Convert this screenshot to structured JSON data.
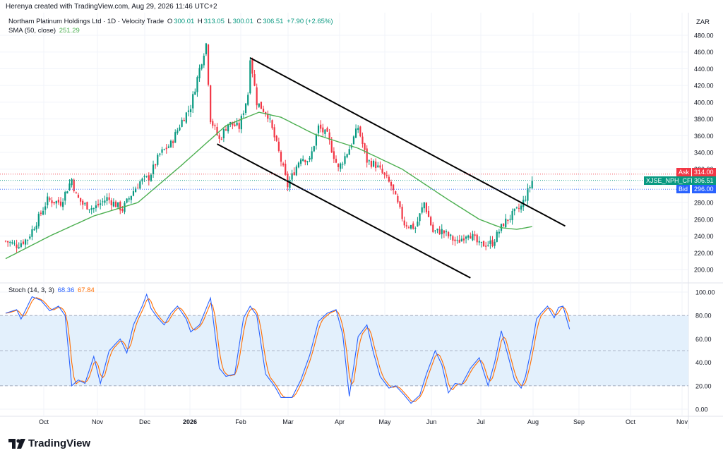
{
  "header": {
    "caption": "Herenya created with TradingView.com, Aug 29, 2026 11:46 UTC+2",
    "instrument": "Northam Platinum Holdings Ltd · 1D · Velocity Trade",
    "ohlc": {
      "o_label": "O",
      "o": "300.01",
      "h_label": "H",
      "h": "313.05",
      "l_label": "L",
      "l": "300.01",
      "c_label": "C",
      "c": "306.51",
      "change": "+7.90 (+2.65%)"
    },
    "sma_label": "SMA (50, close)",
    "sma_value": "251.29",
    "stoch_label": "Stoch (14, 3, 3)",
    "stoch_k": "68.36",
    "stoch_d": "67.84",
    "currency": "ZAR"
  },
  "price_tags": {
    "ask_label": "Ask",
    "ask": "314.00",
    "symbol": "XJSE_NPH_CFD",
    "last": "306.51",
    "bid_label": "Bid",
    "bid": "296.00"
  },
  "brand": "TradingView",
  "colors": {
    "up": "#089981",
    "down": "#f23645",
    "sma": "#4caf50",
    "stoch_k": "#2962ff",
    "stoch_d": "#ff6d00",
    "stoch_band": "#e3f0fc",
    "channel": "#000000",
    "ask": "#f23645",
    "bid": "#2962ff",
    "last": "#089981"
  },
  "chart_data": [
    {
      "type": "candlestick",
      "title": "Northam Platinum Holdings Ltd",
      "ylim": [
        190,
        490
      ],
      "price_ticks": [
        "200.00",
        "220.00",
        "240.00",
        "260.00",
        "280.00",
        "300.00",
        "320.00",
        "340.00",
        "360.00",
        "380.00",
        "400.00",
        "420.00",
        "440.00",
        "460.00",
        "480.00"
      ],
      "x_labels": [
        "Oct",
        "Nov",
        "Dec",
        "2026",
        "Feb",
        "Mar",
        "Apr",
        "May",
        "Jun",
        "Jul",
        "Aug",
        "Sep",
        "Oct",
        "Nov"
      ],
      "price_anchors": [
        [
          0,
          234
        ],
        [
          5,
          229
        ],
        [
          10,
          237
        ],
        [
          15,
          262
        ],
        [
          19,
          283
        ],
        [
          25,
          280
        ],
        [
          30,
          308
        ],
        [
          32,
          288
        ],
        [
          35,
          278
        ],
        [
          40,
          273
        ],
        [
          46,
          285
        ],
        [
          53,
          272
        ],
        [
          58,
          294
        ],
        [
          61,
          305
        ],
        [
          65,
          310
        ],
        [
          70,
          338
        ],
        [
          75,
          350
        ],
        [
          80,
          378
        ],
        [
          84,
          395
        ],
        [
          88,
          440
        ],
        [
          91,
          470
        ],
        [
          93,
          380
        ],
        [
          97,
          355
        ],
        [
          101,
          375
        ],
        [
          106,
          370
        ],
        [
          110,
          410
        ],
        [
          111,
          455
        ],
        [
          114,
          400
        ],
        [
          119,
          385
        ],
        [
          124,
          340
        ],
        [
          128,
          300
        ],
        [
          134,
          335
        ],
        [
          138,
          330
        ],
        [
          142,
          370
        ],
        [
          146,
          360
        ],
        [
          151,
          320
        ],
        [
          156,
          345
        ],
        [
          160,
          370
        ],
        [
          164,
          330
        ],
        [
          168,
          325
        ],
        [
          171,
          315
        ],
        [
          175,
          300
        ],
        [
          177,
          285
        ],
        [
          181,
          255
        ],
        [
          186,
          250
        ],
        [
          190,
          280
        ],
        [
          194,
          245
        ],
        [
          198,
          246
        ],
        [
          205,
          232
        ],
        [
          210,
          245
        ],
        [
          215,
          229
        ],
        [
          221,
          232
        ],
        [
          226,
          255
        ],
        [
          231,
          268
        ],
        [
          234,
          275
        ],
        [
          237,
          293
        ],
        [
          239,
          306
        ]
      ],
      "sma": [
        [
          0,
          213
        ],
        [
          20,
          240
        ],
        [
          40,
          264
        ],
        [
          60,
          280
        ],
        [
          80,
          325
        ],
        [
          100,
          372
        ],
        [
          115,
          388
        ],
        [
          125,
          382
        ],
        [
          140,
          362
        ],
        [
          160,
          345
        ],
        [
          180,
          320
        ],
        [
          200,
          285
        ],
        [
          215,
          260
        ],
        [
          225,
          250
        ],
        [
          232,
          248
        ],
        [
          239,
          251.29
        ]
      ],
      "channel_upper": [
        [
          111,
          453
        ],
        [
          254,
          252
        ]
      ],
      "channel_lower": [
        [
          96,
          350
        ],
        [
          211,
          190
        ]
      ],
      "last": 306.51,
      "ask": 314.0,
      "bid": 296.0
    },
    {
      "type": "line",
      "title": "Stoch (14, 3, 3)",
      "ylim": [
        0,
        100
      ],
      "ticks": [
        "0.00",
        "20.00",
        "40.00",
        "60.00",
        "80.00",
        "100.00"
      ],
      "band": [
        20,
        80
      ],
      "midline": 50,
      "series": [
        {
          "name": "%K",
          "anchors": [
            [
              0,
              82
            ],
            [
              5,
              85
            ],
            [
              7,
              77
            ],
            [
              12,
              96
            ],
            [
              16,
              93
            ],
            [
              20,
              84
            ],
            [
              24,
              88
            ],
            [
              27,
              80
            ],
            [
              30,
              20
            ],
            [
              33,
              25
            ],
            [
              36,
              22
            ],
            [
              40,
              45
            ],
            [
              43,
              22
            ],
            [
              47,
              50
            ],
            [
              52,
              60
            ],
            [
              55,
              48
            ],
            [
              58,
              72
            ],
            [
              62,
              88
            ],
            [
              64,
              98
            ],
            [
              66,
              86
            ],
            [
              69,
              78
            ],
            [
              72,
              72
            ],
            [
              75,
              82
            ],
            [
              78,
              88
            ],
            [
              82,
              77
            ],
            [
              84,
              66
            ],
            [
              88,
              72
            ],
            [
              93,
              95
            ],
            [
              97,
              35
            ],
            [
              100,
              28
            ],
            [
              104,
              30
            ],
            [
              108,
              78
            ],
            [
              111,
              88
            ],
            [
              114,
              80
            ],
            [
              118,
              30
            ],
            [
              122,
              20
            ],
            [
              125,
              10
            ],
            [
              130,
              10
            ],
            [
              134,
              25
            ],
            [
              138,
              46
            ],
            [
              142,
              75
            ],
            [
              146,
              82
            ],
            [
              150,
              85
            ],
            [
              153,
              64
            ],
            [
              156,
              11
            ],
            [
              160,
              62
            ],
            [
              164,
              72
            ],
            [
              167,
              48
            ],
            [
              170,
              28
            ],
            [
              174,
              18
            ],
            [
              177,
              20
            ],
            [
              181,
              12
            ],
            [
              184,
              5
            ],
            [
              188,
              12
            ],
            [
              191,
              30
            ],
            [
              195,
              50
            ],
            [
              198,
              38
            ],
            [
              201,
              14
            ],
            [
              204,
              22
            ],
            [
              207,
              21
            ],
            [
              211,
              35
            ],
            [
              215,
              44
            ],
            [
              219,
              20
            ],
            [
              222,
              40
            ],
            [
              225,
              67
            ],
            [
              228,
              46
            ],
            [
              231,
              25
            ],
            [
              234,
              18
            ],
            [
              236,
              28
            ],
            [
              239,
              55
            ],
            [
              241,
              77
            ],
            [
              243,
              82
            ],
            [
              246,
              88
            ],
            [
              249,
              78
            ],
            [
              251,
              87
            ],
            [
              253,
              88
            ],
            [
              256,
              68.36
            ]
          ]
        }
      ]
    }
  ]
}
